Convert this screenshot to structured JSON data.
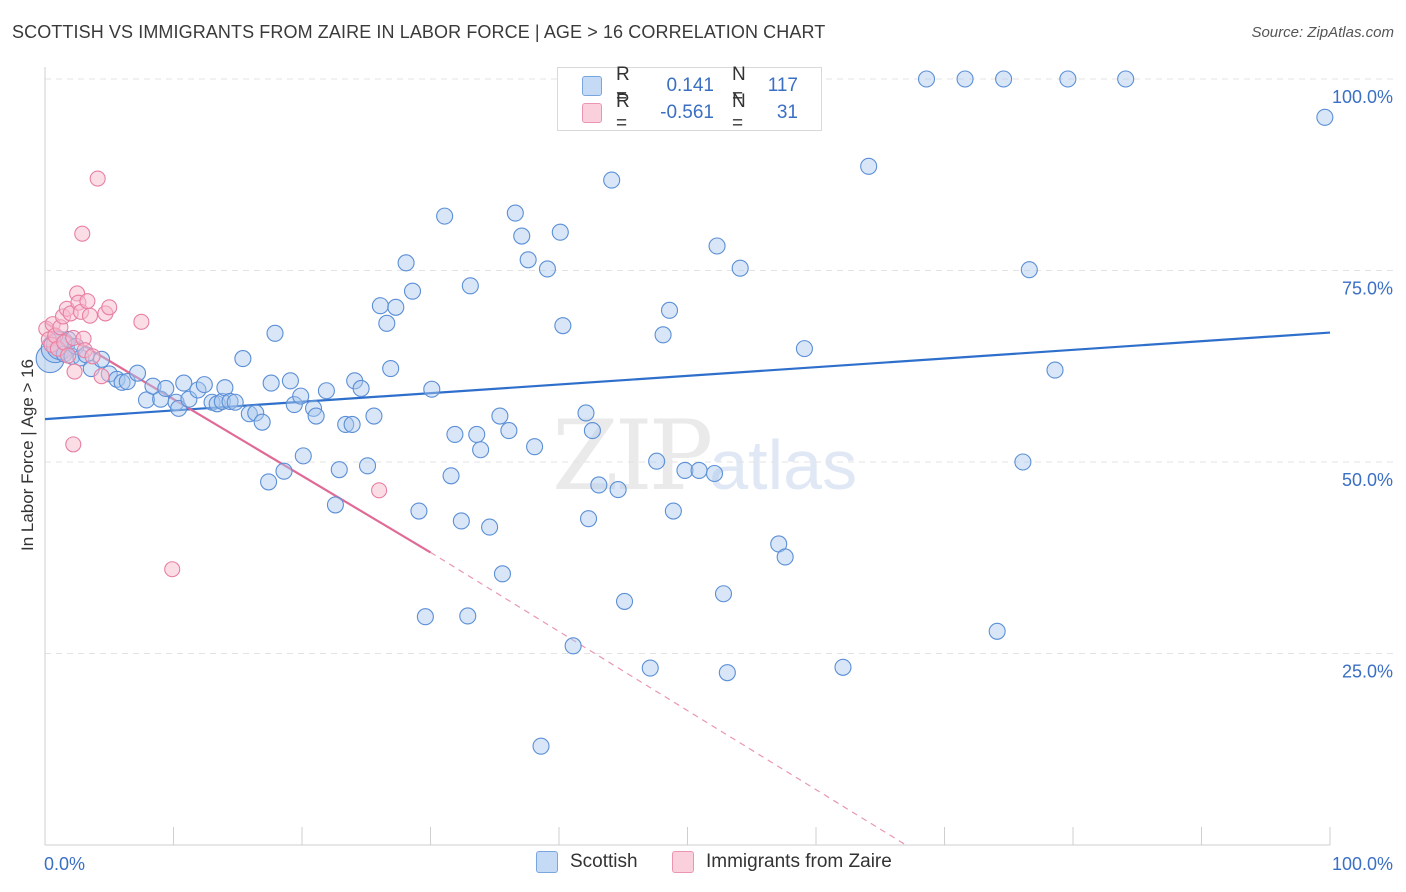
{
  "title": "SCOTTISH VS IMMIGRANTS FROM ZAIRE IN LABOR FORCE | AGE > 16 CORRELATION CHART",
  "source": "Source: ZipAtlas.com",
  "watermark": {
    "main": "ZIP",
    "sub": "atlas"
  },
  "colors": {
    "scottish_fill": "#a9c8ee",
    "scottish_stroke": "#5b8fd6",
    "scottish_line": "#2f6fcc",
    "zaire_fill": "#f7bccd",
    "zaire_stroke": "#e87fa2",
    "zaire_line": "#e06a96",
    "tick_label": "#3a6fc4",
    "grid": "#e3e3e3"
  },
  "legend_top": {
    "rows": [
      {
        "r_label": "R =",
        "r_value": "0.141",
        "n_label": "N =",
        "n_value": "117"
      },
      {
        "r_label": "R =",
        "r_value": "-0.561",
        "n_label": "N =",
        "n_value": "31"
      }
    ]
  },
  "legend_bottom": {
    "items": [
      "Scottish",
      "Immigrants from Zaire"
    ]
  },
  "chart_data": {
    "type": "scatter",
    "title": "SCOTTISH VS IMMIGRANTS FROM ZAIRE IN LABOR FORCE | AGE > 16 CORRELATION CHART",
    "xlabel": "",
    "ylabel": "In Labor Force | Age > 16",
    "xlim": [
      0,
      100
    ],
    "ylim": [
      0,
      102
    ],
    "x_tick_labels": [
      "0.0%",
      "100.0%"
    ],
    "y_ticks": [
      25,
      50,
      75,
      100
    ],
    "y_tick_labels": [
      "25.0%",
      "50.0%",
      "75.0%",
      "100.0%"
    ],
    "grid": true,
    "legend_position": "bottom",
    "series": [
      {
        "name": "Scottish",
        "trend": {
          "x": [
            0,
            100
          ],
          "y": [
            55.6,
            66.9
          ]
        },
        "points": [
          [
            0.4,
            63.5
          ],
          [
            0.8,
            64.8
          ],
          [
            1.2,
            65.2
          ],
          [
            1.5,
            64.1
          ],
          [
            1.8,
            66.0
          ],
          [
            2.1,
            63.8
          ],
          [
            2.4,
            65.1
          ],
          [
            2.8,
            63.6
          ],
          [
            3.2,
            64.0
          ],
          [
            3.6,
            62.2
          ],
          [
            4.4,
            63.4
          ],
          [
            5.0,
            61.5
          ],
          [
            5.6,
            60.8
          ],
          [
            6.0,
            60.4
          ],
          [
            6.4,
            60.5
          ],
          [
            7.2,
            61.6
          ],
          [
            7.9,
            58.1
          ],
          [
            8.4,
            59.9
          ],
          [
            9.0,
            58.2
          ],
          [
            9.4,
            59.6
          ],
          [
            10.2,
            57.8
          ],
          [
            10.4,
            57.0
          ],
          [
            10.8,
            60.3
          ],
          [
            11.2,
            58.2
          ],
          [
            11.9,
            59.4
          ],
          [
            12.4,
            60.1
          ],
          [
            13.0,
            57.8
          ],
          [
            13.4,
            57.6
          ],
          [
            13.8,
            57.9
          ],
          [
            14.0,
            59.7
          ],
          [
            14.4,
            57.9
          ],
          [
            14.8,
            57.8
          ],
          [
            15.4,
            63.5
          ],
          [
            15.9,
            56.3
          ],
          [
            16.4,
            56.4
          ],
          [
            16.9,
            55.2
          ],
          [
            17.4,
            47.4
          ],
          [
            17.6,
            60.3
          ],
          [
            17.9,
            66.8
          ],
          [
            18.6,
            48.8
          ],
          [
            19.1,
            60.6
          ],
          [
            19.4,
            57.5
          ],
          [
            19.9,
            58.6
          ],
          [
            20.1,
            50.8
          ],
          [
            20.9,
            57.0
          ],
          [
            21.1,
            56.0
          ],
          [
            21.9,
            59.3
          ],
          [
            22.6,
            44.4
          ],
          [
            22.9,
            49.0
          ],
          [
            23.4,
            54.9
          ],
          [
            23.9,
            54.9
          ],
          [
            24.1,
            60.6
          ],
          [
            24.6,
            59.6
          ],
          [
            25.1,
            49.5
          ],
          [
            25.6,
            56.0
          ],
          [
            26.1,
            70.4
          ],
          [
            26.6,
            68.1
          ],
          [
            26.9,
            62.2
          ],
          [
            27.3,
            70.2
          ],
          [
            28.1,
            76.0
          ],
          [
            28.6,
            72.3
          ],
          [
            29.1,
            43.6
          ],
          [
            29.6,
            29.8
          ],
          [
            30.1,
            59.5
          ],
          [
            31.1,
            82.1
          ],
          [
            31.6,
            48.2
          ],
          [
            31.9,
            53.6
          ],
          [
            32.4,
            42.3
          ],
          [
            32.9,
            29.9
          ],
          [
            33.1,
            73.0
          ],
          [
            33.6,
            53.6
          ],
          [
            33.9,
            51.6
          ],
          [
            34.6,
            41.5
          ],
          [
            35.4,
            56.0
          ],
          [
            35.6,
            35.4
          ],
          [
            36.1,
            54.1
          ],
          [
            36.6,
            82.5
          ],
          [
            37.1,
            79.5
          ],
          [
            37.6,
            76.4
          ],
          [
            38.1,
            52.0
          ],
          [
            38.6,
            12.9
          ],
          [
            39.1,
            75.2
          ],
          [
            40.1,
            80.0
          ],
          [
            40.3,
            67.8
          ],
          [
            41.1,
            26.0
          ],
          [
            42.1,
            56.4
          ],
          [
            42.3,
            42.6
          ],
          [
            42.6,
            54.1
          ],
          [
            43.1,
            47.0
          ],
          [
            44.1,
            86.8
          ],
          [
            44.6,
            46.4
          ],
          [
            45.1,
            31.8
          ],
          [
            47.1,
            23.1
          ],
          [
            47.6,
            50.1
          ],
          [
            48.1,
            66.6
          ],
          [
            48.6,
            69.8
          ],
          [
            48.9,
            43.6
          ],
          [
            49.8,
            48.9
          ],
          [
            50.9,
            48.9
          ],
          [
            52.1,
            48.5
          ],
          [
            52.3,
            78.2
          ],
          [
            52.8,
            32.8
          ],
          [
            53.1,
            22.5
          ],
          [
            54.1,
            75.3
          ],
          [
            57.1,
            39.3
          ],
          [
            57.6,
            37.6
          ],
          [
            59.1,
            64.8
          ],
          [
            62.1,
            23.2
          ],
          [
            64.1,
            88.6
          ],
          [
            68.6,
            100.0
          ],
          [
            71.6,
            100.0
          ],
          [
            74.1,
            27.9
          ],
          [
            74.6,
            100.0
          ],
          [
            76.1,
            50.0
          ],
          [
            76.6,
            75.1
          ],
          [
            78.6,
            62.0
          ],
          [
            79.6,
            100.0
          ],
          [
            84.1,
            100.0
          ],
          [
            99.6,
            95.0
          ]
        ]
      },
      {
        "name": "Immigrants from Zaire",
        "trend": {
          "x": [
            0,
            30
          ],
          "y": [
            68.2,
            38.2
          ],
          "dashed_to": [
            67,
            0
          ]
        },
        "points": [
          [
            0.1,
            67.4
          ],
          [
            0.3,
            66.0
          ],
          [
            0.5,
            65.3
          ],
          [
            0.6,
            68.0
          ],
          [
            0.8,
            66.5
          ],
          [
            1.0,
            64.8
          ],
          [
            1.2,
            67.6
          ],
          [
            1.4,
            69.0
          ],
          [
            1.5,
            65.6
          ],
          [
            1.7,
            70.0
          ],
          [
            1.8,
            63.9
          ],
          [
            2.0,
            69.4
          ],
          [
            2.2,
            66.2
          ],
          [
            2.3,
            61.8
          ],
          [
            2.5,
            72.0
          ],
          [
            2.6,
            70.8
          ],
          [
            2.8,
            69.6
          ],
          [
            3.0,
            66.1
          ],
          [
            3.1,
            64.6
          ],
          [
            3.3,
            71.0
          ],
          [
            3.5,
            69.1
          ],
          [
            3.7,
            63.8
          ],
          [
            4.1,
            87.0
          ],
          [
            4.4,
            61.2
          ],
          [
            4.7,
            69.4
          ],
          [
            5.0,
            70.2
          ],
          [
            7.5,
            68.3
          ],
          [
            9.9,
            36.0
          ],
          [
            2.2,
            52.3
          ],
          [
            26.0,
            46.3
          ],
          [
            2.9,
            79.8
          ]
        ]
      }
    ]
  }
}
